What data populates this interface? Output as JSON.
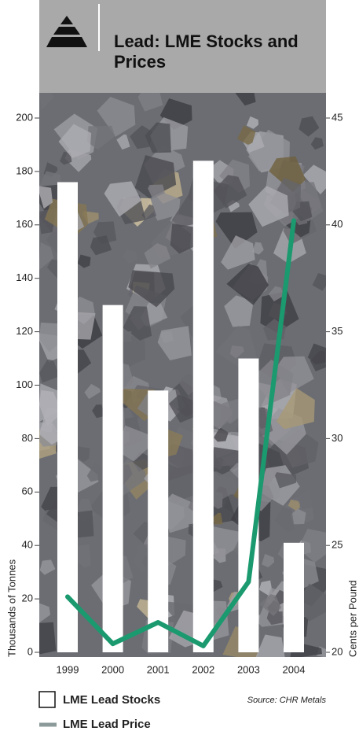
{
  "chart_data": {
    "type": "bar",
    "title": "Lead: LME Stocks and Prices",
    "categories": [
      "1999",
      "2000",
      "2001",
      "2002",
      "2003",
      "2004"
    ],
    "series": [
      {
        "name": "LME Lead Stocks",
        "type": "bar",
        "color": "#ffffff",
        "values": [
          176,
          130,
          98,
          184,
          110,
          41
        ]
      },
      {
        "name": "LME Lead Price",
        "type": "line",
        "axis": "y2",
        "color": "#1a9a6e",
        "values": [
          22.6,
          20.4,
          21.4,
          20.3,
          23.3,
          40.2
        ]
      }
    ],
    "ylabel": "Thousands of Tonnes",
    "y2label": "Cents per Pound",
    "ylim": [
      0,
      200
    ],
    "yticks": [
      0,
      20,
      40,
      60,
      80,
      100,
      120,
      140,
      160,
      180,
      200
    ],
    "y2lim": [
      20,
      45
    ],
    "y2ticks": [
      20,
      25,
      30,
      35,
      40,
      45
    ],
    "source": "Source: CHR Metals"
  }
}
